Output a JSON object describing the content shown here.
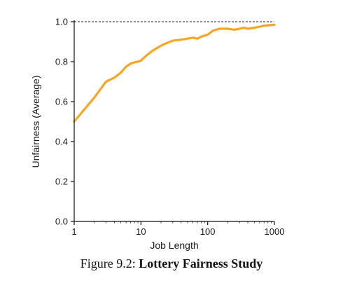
{
  "chart_data": {
    "type": "line",
    "xlabel": "Job Length",
    "ylabel": "Unfairness (Average)",
    "xscale": "log",
    "xlim": [
      1,
      1000
    ],
    "ylim": [
      0.0,
      1.0
    ],
    "x_ticks": [
      1,
      10,
      100,
      1000
    ],
    "x_tick_labels": [
      "1",
      "10",
      "100",
      "1000"
    ],
    "y_ticks": [
      0.0,
      0.2,
      0.4,
      0.6,
      0.8,
      1.0
    ],
    "y_tick_labels": [
      "0.0",
      "0.2",
      "0.4",
      "0.6",
      "0.8",
      "1.0"
    ],
    "reference_line": {
      "y": 1.0,
      "style": "dashed"
    },
    "grid": false,
    "line_color": "#f5a623",
    "series": [
      {
        "x": [
          1,
          2,
          3,
          4,
          5,
          6,
          7,
          8,
          9,
          10,
          12,
          15,
          20,
          25,
          30,
          40,
          50,
          60,
          70,
          80,
          100,
          120,
          150,
          200,
          250,
          300,
          350,
          400,
          500,
          600,
          700,
          800,
          1000
        ],
        "y": [
          0.5,
          0.62,
          0.7,
          0.72,
          0.745,
          0.775,
          0.79,
          0.797,
          0.8,
          0.805,
          0.83,
          0.855,
          0.88,
          0.895,
          0.905,
          0.91,
          0.915,
          0.92,
          0.915,
          0.925,
          0.935,
          0.955,
          0.965,
          0.965,
          0.96,
          0.965,
          0.97,
          0.965,
          0.97,
          0.975,
          0.98,
          0.982,
          0.985
        ]
      }
    ]
  },
  "caption": {
    "label": "Figure 9.2:",
    "title": "Lottery Fairness Study"
  }
}
